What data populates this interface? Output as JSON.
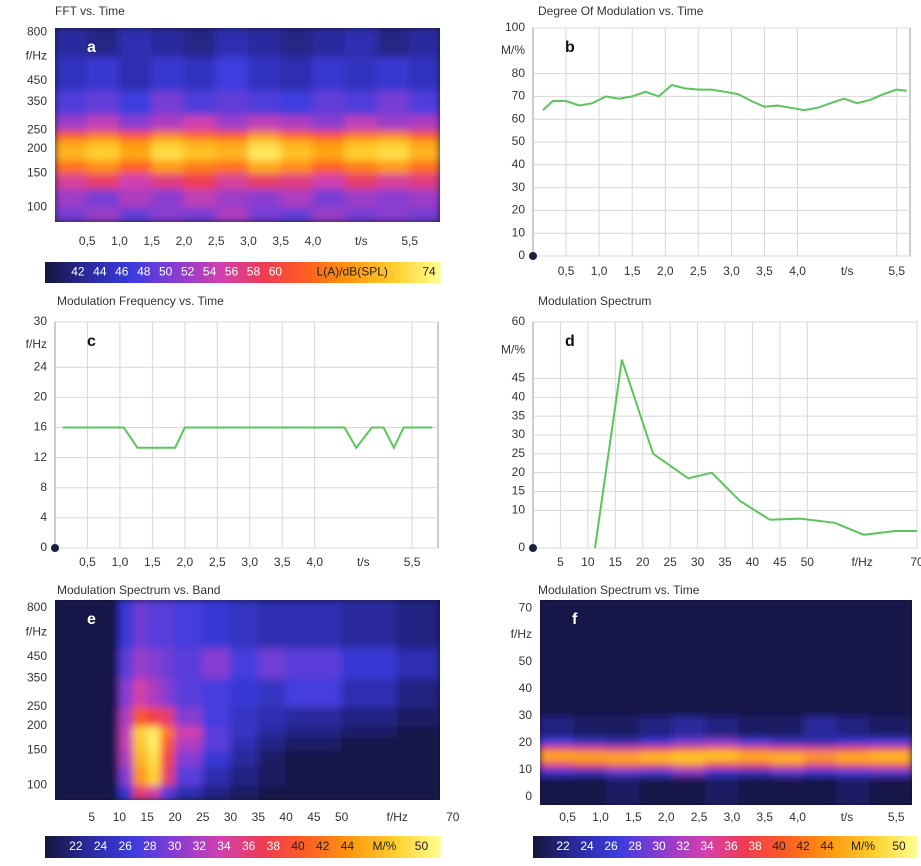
{
  "chart_data": [
    {
      "type": "heatmap",
      "title": "FFT vs. Time",
      "label": "a",
      "xlabel": "t/s",
      "ylabel": "f/Hz",
      "xlim": [
        0,
        5.97
      ],
      "ylim": [
        84,
        840
      ],
      "ylog": true,
      "xticks": [
        {
          "value": 0.5,
          "label": "0,5"
        },
        {
          "value": 1.0,
          "label": "1,0"
        },
        {
          "value": 1.5,
          "label": "1,5"
        },
        {
          "value": 2.0,
          "label": "2,0"
        },
        {
          "value": 2.5,
          "label": "2,5"
        },
        {
          "value": 3.0,
          "label": "3,0"
        },
        {
          "value": 3.5,
          "label": "3,5"
        },
        {
          "value": 4.0,
          "label": "4,0"
        },
        {
          "value": 5.5,
          "label": "5,5"
        }
      ],
      "yticks": [
        100,
        150,
        200,
        250,
        350,
        450,
        800
      ],
      "x": [
        0,
        0.5,
        1,
        1.5,
        2,
        2.5,
        3,
        3.5,
        4,
        4.5,
        5,
        5.5,
        5.97
      ],
      "y": [
        84,
        100,
        125,
        150,
        175,
        200,
        225,
        250,
        300,
        400,
        600,
        840
      ],
      "z": [
        [
          50,
          52,
          49,
          51,
          50,
          53,
          50,
          49,
          52,
          50,
          51,
          50
        ],
        [
          52,
          50,
          53,
          51,
          54,
          52,
          51,
          53,
          50,
          52,
          51,
          52
        ],
        [
          56,
          58,
          55,
          57,
          59,
          56,
          58,
          57,
          55,
          58,
          56,
          57
        ],
        [
          64,
          66,
          63,
          67,
          65,
          64,
          68,
          66,
          63,
          65,
          67,
          64
        ],
        [
          69,
          71,
          68,
          72,
          70,
          69,
          73,
          70,
          68,
          71,
          72,
          69
        ],
        [
          68,
          70,
          67,
          71,
          69,
          68,
          72,
          69,
          67,
          70,
          71,
          68
        ],
        [
          62,
          64,
          61,
          65,
          63,
          62,
          66,
          63,
          61,
          64,
          65,
          62
        ],
        [
          52,
          54,
          51,
          53,
          55,
          52,
          54,
          53,
          51,
          54,
          52,
          53
        ],
        [
          48,
          49,
          47,
          50,
          48,
          49,
          48,
          47,
          49,
          48,
          50,
          48
        ],
        [
          45,
          46,
          44,
          46,
          45,
          47,
          45,
          44,
          46,
          45,
          46,
          45
        ],
        [
          43,
          42,
          44,
          43,
          42,
          44,
          43,
          42,
          43,
          44,
          42,
          43
        ]
      ],
      "colors": [
        "#15153a",
        "#2a2aa0",
        "#3c3ce0",
        "#8a3cd0",
        "#d040b0",
        "#f03c50",
        "#ff6020",
        "#ff9a10",
        "#ffd030",
        "#ffff90"
      ],
      "colorbar": {
        "zlim": [
          39,
          75
        ],
        "ticks": [
          42,
          44,
          46,
          48,
          50,
          52,
          54,
          56,
          58,
          60,
          74
        ],
        "label": "L(A)/dB(SPL)"
      }
    },
    {
      "type": "line",
      "title": "Degree Of Modulation vs. Time",
      "label": "b",
      "xlabel": "t/s",
      "ylabel": "M/%",
      "xlim": [
        0,
        5.7
      ],
      "ylim": [
        0,
        100
      ],
      "grid": true,
      "color": "#5cc45c",
      "xticks": [
        {
          "value": 0.5,
          "label": "0,5"
        },
        {
          "value": 1.0,
          "label": "1,0"
        },
        {
          "value": 1.5,
          "label": "1,5"
        },
        {
          "value": 2.0,
          "label": "2,0"
        },
        {
          "value": 2.5,
          "label": "2,5"
        },
        {
          "value": 3.0,
          "label": "3,0"
        },
        {
          "value": 3.5,
          "label": "3,5"
        },
        {
          "value": 4.0,
          "label": "4,0"
        },
        {
          "value": 5.5,
          "label": "5,5"
        }
      ],
      "yticks": [
        0,
        10,
        20,
        30,
        40,
        50,
        60,
        70,
        80,
        100
      ],
      "x": [
        0.15,
        0.3,
        0.5,
        0.7,
        0.9,
        1.1,
        1.3,
        1.5,
        1.7,
        1.9,
        2.1,
        2.3,
        2.5,
        2.7,
        2.9,
        3.1,
        3.3,
        3.5,
        3.7,
        3.9,
        4.1,
        4.3,
        4.5,
        4.7,
        4.9,
        5.1,
        5.3,
        5.5,
        5.65
      ],
      "values": [
        64,
        68,
        68,
        66,
        67,
        70,
        69,
        70,
        72,
        70,
        75,
        73.5,
        73,
        73,
        72,
        71,
        68,
        65.5,
        66,
        65,
        64,
        65,
        67,
        69,
        67,
        68.5,
        71,
        73,
        72.5
      ]
    },
    {
      "type": "line",
      "title": "Modulation Frequency vs. Time",
      "label": "c",
      "xlabel": "t/s",
      "ylabel": "f/Hz",
      "xlim": [
        0,
        5.9
      ],
      "ylim": [
        0,
        30
      ],
      "grid": true,
      "color": "#5cc45c",
      "xticks": [
        {
          "value": 0.5,
          "label": "0,5"
        },
        {
          "value": 1.0,
          "label": "1,0"
        },
        {
          "value": 1.5,
          "label": "1,5"
        },
        {
          "value": 2.0,
          "label": "2,0"
        },
        {
          "value": 2.5,
          "label": "2,5"
        },
        {
          "value": 3.0,
          "label": "3,0"
        },
        {
          "value": 3.5,
          "label": "3,5"
        },
        {
          "value": 4.0,
          "label": "4,0"
        },
        {
          "value": 5.5,
          "label": "5,5"
        }
      ],
      "yticks": [
        0,
        4,
        8,
        12,
        16,
        20,
        24,
        30
      ],
      "x": [
        0.12,
        1.06,
        1.27,
        1.85,
        2.0,
        4.46,
        4.64,
        4.88,
        5.06,
        5.22,
        5.37,
        5.81
      ],
      "values": [
        16,
        16,
        13.3,
        13.3,
        16,
        16,
        13.3,
        16,
        16,
        13.3,
        16,
        16
      ]
    },
    {
      "type": "line",
      "title": "Modulation Spectrum",
      "label": "d",
      "xlabel": "f/Hz",
      "ylabel": "M/%",
      "xlim": [
        0,
        70
      ],
      "ylim": [
        0,
        60
      ],
      "grid": true,
      "color": "#5cc45c",
      "xticks": [
        5,
        10,
        15,
        20,
        25,
        30,
        35,
        40,
        45,
        50,
        70
      ],
      "yticks": [
        0,
        10,
        15,
        20,
        25,
        30,
        35,
        40,
        45,
        60
      ],
      "x": [
        11.3,
        16.2,
        21.9,
        28.3,
        32.6,
        37.7,
        43.2,
        48.7,
        55,
        60.3,
        66,
        70
      ],
      "values": [
        0,
        50,
        25,
        18.5,
        20,
        12.5,
        7.5,
        7.8,
        6.7,
        3.5,
        4.5,
        4.5
      ]
    },
    {
      "type": "heatmap",
      "title": "Modulation Spectrum vs. Band",
      "label": "e",
      "xlabel": "f/Hz",
      "ylabel": "f/Hz",
      "xlim": [
        -1.6,
        67.7
      ],
      "ylim": [
        84,
        876
      ],
      "ylog": true,
      "xticks": [
        5,
        10,
        15,
        20,
        25,
        30,
        35,
        40,
        45,
        50,
        70
      ],
      "yticks": [
        100,
        150,
        200,
        250,
        350,
        450,
        800
      ],
      "x": [
        -1.6,
        5,
        10,
        12.5,
        15,
        17.5,
        20,
        25,
        30,
        35,
        40,
        50,
        60,
        67.7
      ],
      "y": [
        84,
        100,
        125,
        150,
        175,
        200,
        250,
        350,
        500,
        876
      ],
      "z": [
        [
          20,
          20,
          26,
          36,
          34,
          28,
          24,
          22,
          21,
          20,
          20,
          20,
          20
        ],
        [
          20,
          20,
          30,
          44,
          48,
          36,
          28,
          24,
          22,
          21,
          20,
          20,
          20
        ],
        [
          20,
          20,
          32,
          46,
          49,
          38,
          30,
          26,
          23,
          21,
          20,
          20,
          20
        ],
        [
          20,
          20,
          33,
          47,
          50,
          40,
          32,
          28,
          24,
          22,
          21,
          20,
          20
        ],
        [
          20,
          20,
          33,
          48,
          50,
          42,
          34,
          28,
          25,
          23,
          22,
          21,
          20
        ],
        [
          20,
          20,
          32,
          40,
          38,
          36,
          30,
          27,
          25,
          24,
          23,
          22,
          21
        ],
        [
          20,
          20,
          30,
          34,
          32,
          30,
          28,
          27,
          26,
          25,
          27,
          24,
          22
        ],
        [
          20,
          20,
          28,
          31,
          30,
          29,
          28,
          30,
          27,
          29,
          28,
          26,
          24
        ],
        [
          20,
          20,
          26,
          29,
          28,
          28,
          27,
          26,
          25,
          24,
          24,
          23,
          22
        ]
      ],
      "colors": [
        "#15153a",
        "#2a2aa0",
        "#3c3ce0",
        "#8a3cd0",
        "#d040b0",
        "#f03c50",
        "#ff6020",
        "#ff9a10",
        "#ffd030",
        "#ffff90"
      ],
      "colorbar": {
        "zlim": [
          19.5,
          51.5
        ],
        "ticks": [
          22,
          24,
          26,
          28,
          30,
          32,
          34,
          36,
          38,
          40,
          42,
          44,
          50
        ],
        "label": "M/%"
      }
    },
    {
      "type": "heatmap",
      "title": "Modulation Spectrum vs. Time",
      "label": "f",
      "xlabel": "t/s",
      "ylabel": "f/Hz",
      "xlim": [
        0.08,
        5.74
      ],
      "ylim": [
        -3,
        73
      ],
      "xticks": [
        {
          "value": 0.5,
          "label": "0,5"
        },
        {
          "value": 1.0,
          "label": "1,0"
        },
        {
          "value": 1.5,
          "label": "1,5"
        },
        {
          "value": 2.0,
          "label": "2,0"
        },
        {
          "value": 2.5,
          "label": "2,5"
        },
        {
          "value": 3.0,
          "label": "3,0"
        },
        {
          "value": 3.5,
          "label": "3,5"
        },
        {
          "value": 4.0,
          "label": "4,0"
        },
        {
          "value": 5.5,
          "label": "5,5"
        }
      ],
      "yticks": [
        0,
        10,
        20,
        30,
        40,
        50,
        70
      ],
      "x": [
        0.08,
        0.6,
        1.1,
        1.6,
        2.1,
        2.6,
        3.1,
        3.6,
        4.1,
        4.6,
        5.1,
        5.74
      ],
      "y": [
        -3,
        8,
        11,
        13,
        15,
        17,
        19,
        22,
        30,
        73
      ],
      "z": [
        [
          20,
          20,
          21,
          20,
          20,
          21,
          20,
          20,
          20,
          21,
          20
        ],
        [
          26,
          25,
          28,
          27,
          30,
          26,
          25,
          28,
          26,
          27,
          28
        ],
        [
          36,
          38,
          40,
          39,
          42,
          38,
          37,
          40,
          36,
          39,
          40
        ],
        [
          44,
          45,
          46,
          47,
          48,
          46,
          45,
          47,
          44,
          46,
          46
        ],
        [
          46,
          45,
          44,
          46,
          47,
          48,
          46,
          45,
          44,
          45,
          47
        ],
        [
          38,
          36,
          35,
          37,
          40,
          41,
          38,
          36,
          35,
          37,
          38
        ],
        [
          27,
          25,
          24,
          26,
          29,
          30,
          27,
          25,
          24,
          26,
          27
        ],
        [
          22,
          21,
          21,
          22,
          23,
          22,
          21,
          21,
          23,
          22,
          21
        ],
        [
          20,
          20,
          20,
          20,
          20,
          20,
          20,
          20,
          20,
          20,
          20
        ]
      ],
      "colors": [
        "#15153a",
        "#2a2aa0",
        "#3c3ce0",
        "#8a3cd0",
        "#d040b0",
        "#f03c50",
        "#ff6020",
        "#ff9a10",
        "#ffd030",
        "#ffff90"
      ],
      "colorbar": {
        "zlim": [
          19.5,
          51.5
        ],
        "ticks": [
          22,
          24,
          26,
          28,
          30,
          32,
          34,
          36,
          38,
          40,
          42,
          44,
          50
        ],
        "label": "M/%"
      }
    }
  ]
}
